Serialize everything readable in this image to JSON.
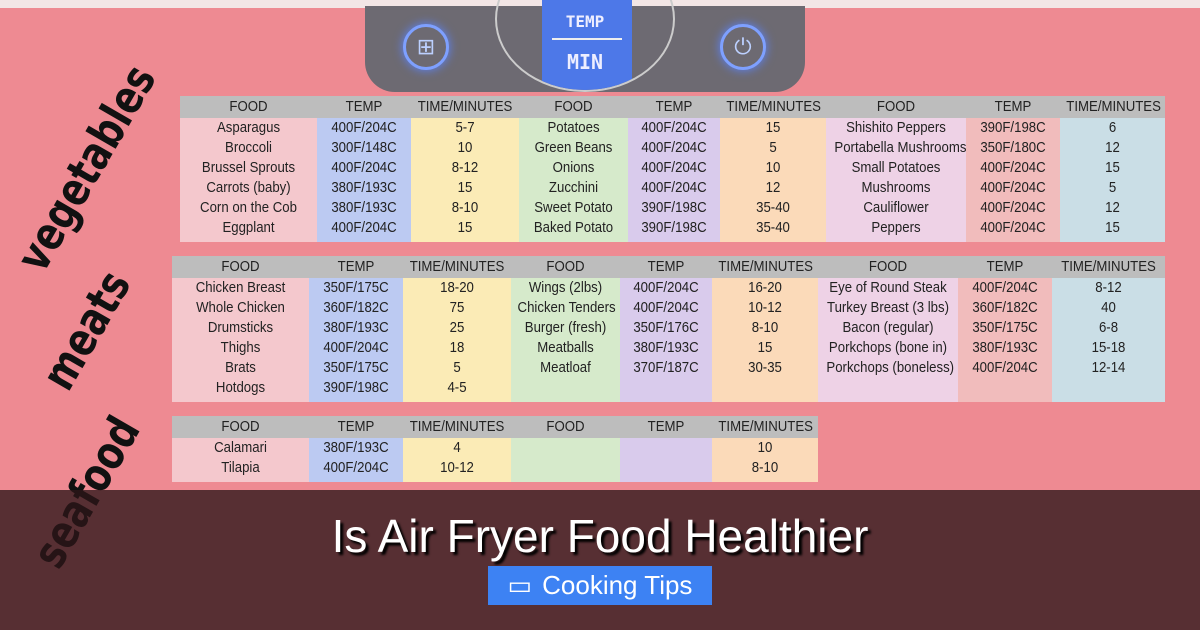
{
  "device": {
    "screen_top": "TEMP",
    "screen_bottom": "MIN",
    "left_button_icon": "menu-grid-icon",
    "right_button_icon": "power-icon"
  },
  "sections": [
    {
      "label": "vegetables",
      "headers": [
        "FOOD",
        "TEMP",
        "TIME/MINUTES",
        "FOOD",
        "TEMP",
        "TIME/MINUTES",
        "FOOD",
        "TEMP",
        "TIME/MINUTES"
      ],
      "rows": [
        [
          "Asparagus",
          "400F/204C",
          "5-7",
          "Potatoes",
          "400F/204C",
          "15",
          "Shishito Peppers",
          "390F/198C",
          "6"
        ],
        [
          "Broccoli",
          "300F/148C",
          "10",
          "Green Beans",
          "400F/204C",
          "5",
          "Portabella Mushrooms",
          "350F/180C",
          "12"
        ],
        [
          "Brussel Sprouts",
          "400F/204C",
          "8-12",
          "Onions",
          "400F/204C",
          "10",
          "Small Potatoes",
          "400F/204C",
          "15"
        ],
        [
          "Carrots (baby)",
          "380F/193C",
          "15",
          "Zucchini",
          "400F/204C",
          "12",
          "Mushrooms",
          "400F/204C",
          "5"
        ],
        [
          "Corn on the Cob",
          "380F/193C",
          "8-10",
          "Sweet Potato",
          "390F/198C",
          "35-40",
          "Cauliflower",
          "400F/204C",
          "12"
        ],
        [
          "Eggplant",
          "400F/204C",
          "15",
          "Baked Potato",
          "390F/198C",
          "35-40",
          "Peppers",
          "400F/204C",
          "15"
        ]
      ]
    },
    {
      "label": "meats",
      "headers": [
        "FOOD",
        "TEMP",
        "TIME/MINUTES",
        "FOOD",
        "TEMP",
        "TIME/MINUTES",
        "FOOD",
        "TEMP",
        "TIME/MINUTES"
      ],
      "rows": [
        [
          "Chicken Breast",
          "350F/175C",
          "18-20",
          "Wings (2lbs)",
          "400F/204C",
          "16-20",
          "Eye of Round Steak",
          "400F/204C",
          "8-12"
        ],
        [
          "Whole Chicken",
          "360F/182C",
          "75",
          "Chicken Tenders",
          "400F/204C",
          "10-12",
          "Turkey Breast (3 lbs)",
          "360F/182C",
          "40"
        ],
        [
          "Drumsticks",
          "380F/193C",
          "25",
          "Burger (fresh)",
          "350F/176C",
          "8-10",
          "Bacon (regular)",
          "350F/175C",
          "6-8"
        ],
        [
          "Thighs",
          "400F/204C",
          "18",
          "Meatballs",
          "380F/193C",
          "15",
          "Porkchops (bone in)",
          "380F/193C",
          "15-18"
        ],
        [
          "Brats",
          "350F/175C",
          "5",
          "Meatloaf",
          "370F/187C",
          "30-35",
          "Porkchops (boneless)",
          "400F/204C",
          "12-14"
        ],
        [
          "Hotdogs",
          "390F/198C",
          "4-5",
          "",
          "",
          "",
          "",
          "",
          ""
        ]
      ]
    },
    {
      "label": "seafood",
      "headers": [
        "FOOD",
        "TEMP",
        "TIME/MINUTES",
        "FOOD",
        "TEMP",
        "TIME/MINUTES"
      ],
      "rows": [
        [
          "Calamari",
          "380F/193C",
          "4",
          "",
          "",
          "10"
        ],
        [
          "Tilapia",
          "400F/204C",
          "10-12",
          "",
          "",
          "8-10"
        ]
      ]
    }
  ],
  "column_colors": [
    "#f4c8cd",
    "#bccaf2",
    "#fbebb6",
    "#d6eacb",
    "#d9cbec",
    "#fbdab9",
    "#eed2e6",
    "#f1bcbc",
    "#cadee6"
  ],
  "overlay": {
    "title": "Is Air Fryer Food Healthier",
    "badge_icon": "folder-icon",
    "badge_label": "Cooking Tips"
  }
}
